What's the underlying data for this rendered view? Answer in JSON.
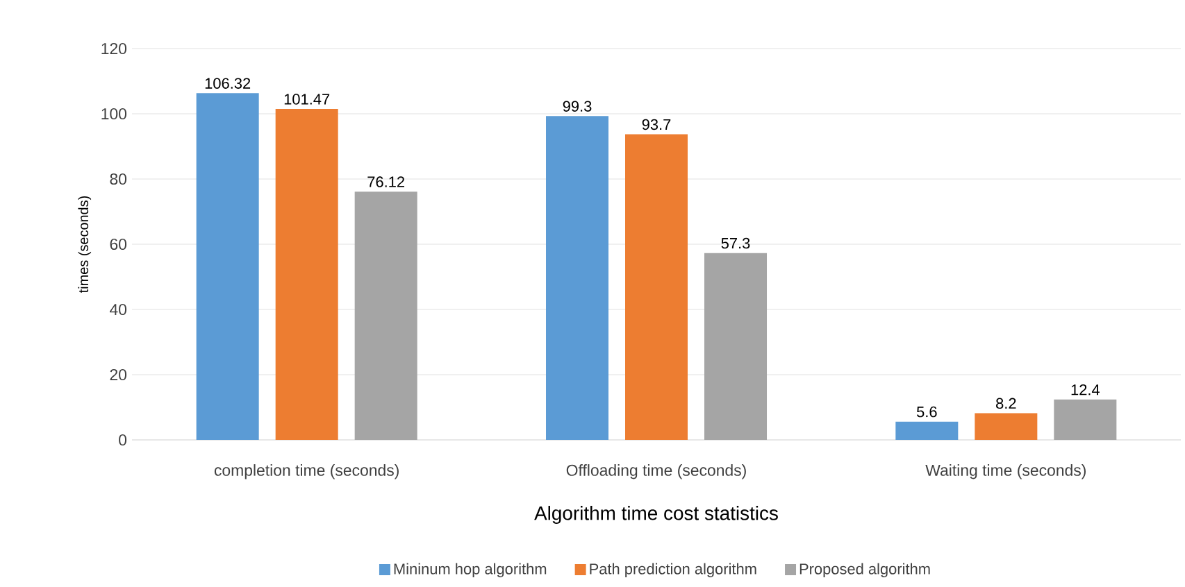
{
  "chart_data": {
    "type": "bar",
    "xlabel": "Algorithm time cost statistics",
    "ylabel": "times (seconds)",
    "categories": [
      "completion time (seconds)",
      "Offloading time (seconds)",
      "Waiting time (seconds)"
    ],
    "series": [
      {
        "name": "Mininum hop algorithm",
        "color": "#5b9bd5",
        "values": [
          106.32,
          99.3,
          5.6
        ]
      },
      {
        "name": "Path prediction algorithm",
        "color": "#ed7d31",
        "values": [
          101.47,
          93.7,
          8.2
        ]
      },
      {
        "name": "Proposed algorithm",
        "color": "#a5a5a5",
        "values": [
          76.12,
          57.3,
          12.4
        ]
      }
    ],
    "ylim": [
      0,
      120
    ],
    "yticks": [
      0,
      20,
      40,
      60,
      80,
      100,
      120
    ],
    "grid": "y",
    "legend": "bottom",
    "data_labels": true
  }
}
